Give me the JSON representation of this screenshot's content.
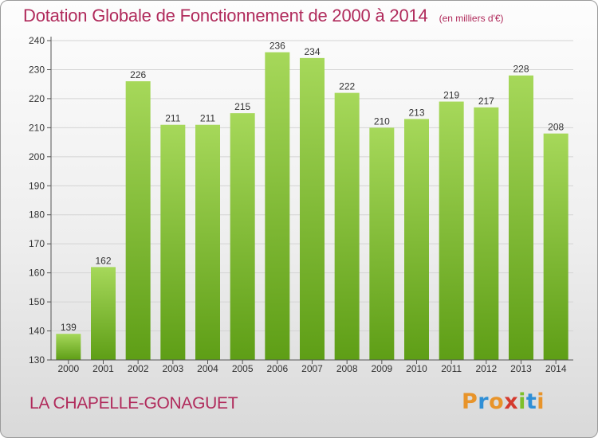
{
  "header": {
    "title": "Dotation Globale de Fonctionnement de 2000 à 2014",
    "subtitle": "(en milliers d'€)"
  },
  "footer": {
    "commune": "LA CHAPELLE-GONAGUET",
    "logo_text": "Proxiti"
  },
  "colors": {
    "title": "#b02a5b",
    "bar_light": "#a6d85a",
    "bar_dark": "#5e9e16",
    "logo": [
      "#e8942a",
      "#2f8fd6",
      "#e8942a",
      "#d43a2e",
      "#7dbf2a",
      "#2f8fd6",
      "#e8942a"
    ]
  },
  "chart_data": {
    "type": "bar",
    "title": "Dotation Globale de Fonctionnement de 2000 à 2014",
    "subtitle": "(en milliers d'€)",
    "xlabel": "",
    "ylabel": "",
    "categories": [
      "2000",
      "2001",
      "2002",
      "2003",
      "2004",
      "2005",
      "2006",
      "2007",
      "2008",
      "2009",
      "2010",
      "2011",
      "2012",
      "2013",
      "2014"
    ],
    "values": [
      139,
      162,
      226,
      211,
      211,
      215,
      236,
      234,
      222,
      210,
      213,
      219,
      217,
      228,
      208
    ],
    "ylim": [
      130,
      240
    ],
    "yticks": [
      130,
      140,
      150,
      160,
      170,
      180,
      190,
      200,
      210,
      220,
      230,
      240
    ],
    "grid": true
  }
}
